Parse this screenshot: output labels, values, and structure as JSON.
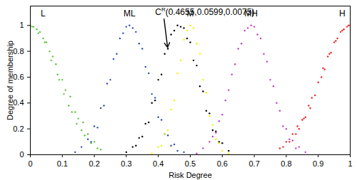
{
  "chart_data": {
    "type": "scatter",
    "xlabel": "Risk Degree",
    "ylabel": "Degree of membership",
    "xlim": [
      0,
      1
    ],
    "ylim": [
      0,
      1.15
    ],
    "xticks": [
      0,
      0.1,
      0.2,
      0.3,
      0.4,
      0.5,
      0.6,
      0.7,
      0.8,
      0.9,
      1
    ],
    "yticks": [
      0,
      0.2,
      0.4,
      0.6,
      0.8,
      1
    ],
    "marker": "dot",
    "series": [
      {
        "color": "#5fbf3a",
        "x": [
          0,
          0.005,
          0.01,
          0.02,
          0.025,
          0.03,
          0.04,
          0.045,
          0.05,
          0.06,
          0.065,
          0.07,
          0.08,
          0.085,
          0.09,
          0.1,
          0.105,
          0.11,
          0.12,
          0.125,
          0.13,
          0.14,
          0.145,
          0.15,
          0.16,
          0.165,
          0.17,
          0.18,
          0.19,
          0.2,
          0.21,
          0.22
        ],
        "values": [
          1,
          0.99,
          0.99,
          0.97,
          0.94,
          0.95,
          0.9,
          0.87,
          0.87,
          0.8,
          0.73,
          0.76,
          0.7,
          0.62,
          0.58,
          0.58,
          0.47,
          0.5,
          0.38,
          0.45,
          0.33,
          0.33,
          0.24,
          0.28,
          0.19,
          0.25,
          0.15,
          0.16,
          0.09,
          0.1,
          0.05,
          0.04
        ]
      },
      {
        "color": "#2b4ca8",
        "x": [
          0.14,
          0.16,
          0.18,
          0.19,
          0.2,
          0.21,
          0.22,
          0.23,
          0.24,
          0.25,
          0.26,
          0.27,
          0.28,
          0.29,
          0.3,
          0.31,
          0.32,
          0.33,
          0.34,
          0.35,
          0.36,
          0.37,
          0.38,
          0.39,
          0.4,
          0.41,
          0.42,
          0.43,
          0.44,
          0.45,
          0.46,
          0.48
        ],
        "values": [
          0.02,
          0.06,
          0.12,
          0.1,
          0.22,
          0.21,
          0.36,
          0.38,
          0.55,
          0.58,
          0.74,
          0.78,
          0.9,
          0.94,
          0.99,
          1,
          0.98,
          0.95,
          0.86,
          0.82,
          0.68,
          0.63,
          0.47,
          0.44,
          0.29,
          0.27,
          0.16,
          0.15,
          0.07,
          0.08,
          0.03,
          0.02
        ]
      },
      {
        "color": "#000000",
        "x": [
          0.3,
          0.32,
          0.33,
          0.34,
          0.35,
          0.36,
          0.37,
          0.38,
          0.39,
          0.4,
          0.41,
          0.42,
          0.43,
          0.44,
          0.45,
          0.46,
          0.47,
          0.48,
          0.49,
          0.5,
          0.51,
          0.52,
          0.53,
          0.54,
          0.55,
          0.56,
          0.57,
          0.58,
          0.59,
          0.6,
          0.62
        ],
        "values": [
          0.02,
          0.06,
          0.07,
          0.13,
          0.14,
          0.24,
          0.25,
          0.4,
          0.42,
          0.58,
          0.62,
          0.78,
          0.82,
          0.93,
          0.96,
          1,
          0.99,
          0.98,
          0.9,
          0.87,
          0.73,
          0.69,
          0.53,
          0.49,
          0.34,
          0.32,
          0.19,
          0.18,
          0.1,
          0.09,
          0.03
        ]
      },
      {
        "color": "#f0f000",
        "x": [
          0.38,
          0.4,
          0.41,
          0.42,
          0.43,
          0.44,
          0.45,
          0.46,
          0.47,
          0.48,
          0.49,
          0.5,
          0.51,
          0.52,
          0.53,
          0.54,
          0.55,
          0.56,
          0.57,
          0.58,
          0.59,
          0.6,
          0.62
        ],
        "values": [
          0.01,
          0.06,
          0.07,
          0.16,
          0.19,
          0.35,
          0.42,
          0.63,
          0.73,
          0.89,
          0.96,
          1,
          0.98,
          0.86,
          0.78,
          0.58,
          0.48,
          0.3,
          0.23,
          0.12,
          0.09,
          0.03,
          0.01
        ]
      },
      {
        "color": "#c03cc0",
        "x": [
          0.52,
          0.54,
          0.56,
          0.57,
          0.58,
          0.59,
          0.6,
          0.61,
          0.62,
          0.63,
          0.64,
          0.65,
          0.66,
          0.67,
          0.68,
          0.69,
          0.7,
          0.71,
          0.72,
          0.73,
          0.74,
          0.75,
          0.76,
          0.77,
          0.78,
          0.79,
          0.8,
          0.81,
          0.82,
          0.83,
          0.84,
          0.86
        ],
        "values": [
          0.01,
          0.05,
          0.1,
          0.14,
          0.17,
          0.26,
          0.31,
          0.42,
          0.5,
          0.62,
          0.7,
          0.82,
          0.86,
          0.96,
          0.98,
          1,
          0.99,
          0.93,
          0.9,
          0.78,
          0.72,
          0.58,
          0.53,
          0.4,
          0.34,
          0.22,
          0.2,
          0.12,
          0.11,
          0.05,
          0.06,
          0.02
        ]
      },
      {
        "color": "#e8231f",
        "x": [
          0.78,
          0.79,
          0.8,
          0.81,
          0.82,
          0.83,
          0.835,
          0.84,
          0.85,
          0.855,
          0.86,
          0.87,
          0.875,
          0.88,
          0.89,
          0.9,
          0.91,
          0.915,
          0.92,
          0.93,
          0.935,
          0.94,
          0.95,
          0.955,
          0.96,
          0.97,
          0.975,
          0.98,
          0.99,
          0.995,
          1
        ],
        "values": [
          0.05,
          0.06,
          0.1,
          0.1,
          0.16,
          0.16,
          0.22,
          0.2,
          0.27,
          0.28,
          0.29,
          0.38,
          0.36,
          0.44,
          0.46,
          0.56,
          0.6,
          0.67,
          0.66,
          0.76,
          0.78,
          0.79,
          0.87,
          0.88,
          0.9,
          0.95,
          0.96,
          0.97,
          0.99,
          1,
          1
        ]
      }
    ],
    "annotations": [
      {
        "text": "L",
        "x": 0.04,
        "y": 1.09
      },
      {
        "text": "ML",
        "x": 0.31,
        "y": 1.09
      },
      {
        "text": "M",
        "x": 0.5,
        "y": 1.09
      },
      {
        "text": "MH",
        "x": 0.69,
        "y": 1.09
      },
      {
        "text": "H",
        "x": 0.975,
        "y": 1.09
      },
      {
        "text": "C",
        "superscript": "R",
        "suffix": "(0.4655,0.0599,0.0075)",
        "x": 0.39,
        "y": 1.1,
        "arrow": {
          "x1": 0.418,
          "y1": 1.05,
          "x2": 0.429,
          "y2": 0.83
        }
      }
    ]
  }
}
